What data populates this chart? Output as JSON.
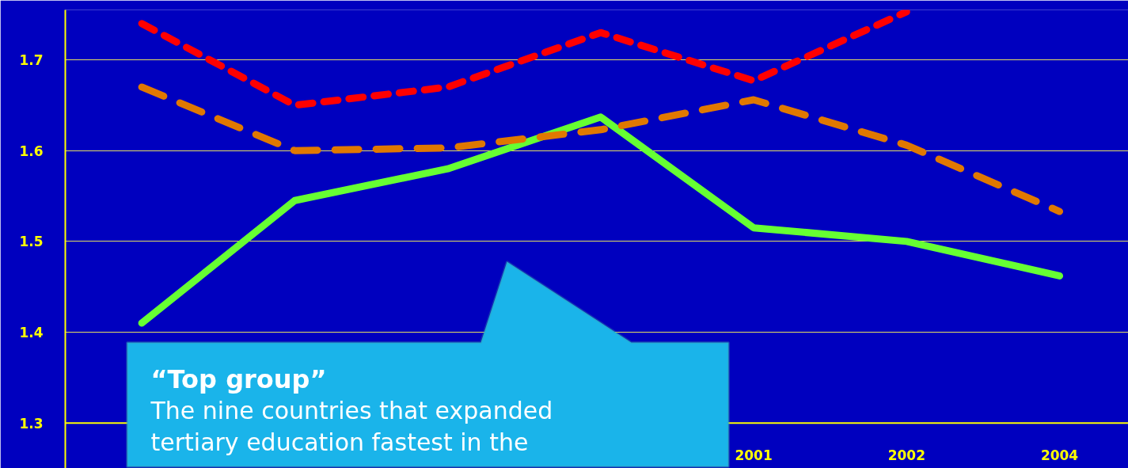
{
  "chart_data": {
    "type": "line",
    "categories": [
      null,
      null,
      null,
      null,
      "2001",
      "2002",
      "2004"
    ],
    "series": [
      {
        "color": "#66ff33",
        "line_style": "solid",
        "values": [
          1.41,
          1.545,
          1.58,
          1.637,
          1.515,
          1.5,
          1.462
        ]
      },
      {
        "color": "#ff0000",
        "line_style": "dotted",
        "values": [
          1.74,
          1.65,
          1.67,
          1.73,
          1.677,
          1.753,
          null
        ]
      },
      {
        "color": "#e07800",
        "line_style": "dashed",
        "values": [
          1.67,
          1.6,
          1.603,
          1.623,
          1.656,
          1.606,
          1.533
        ]
      }
    ],
    "ylim": [
      1.25,
      1.755
    ],
    "yticks": [
      1.3,
      1.4,
      1.5,
      1.6,
      1.7
    ],
    "grid": "y",
    "ref_lines": [
      {
        "axis": "y",
        "value": 1.3,
        "color": "#ffff00"
      }
    ],
    "annotations": [
      "“Top group”",
      "The nine countries that expanded tertiary education fastest in the"
    ]
  }
}
